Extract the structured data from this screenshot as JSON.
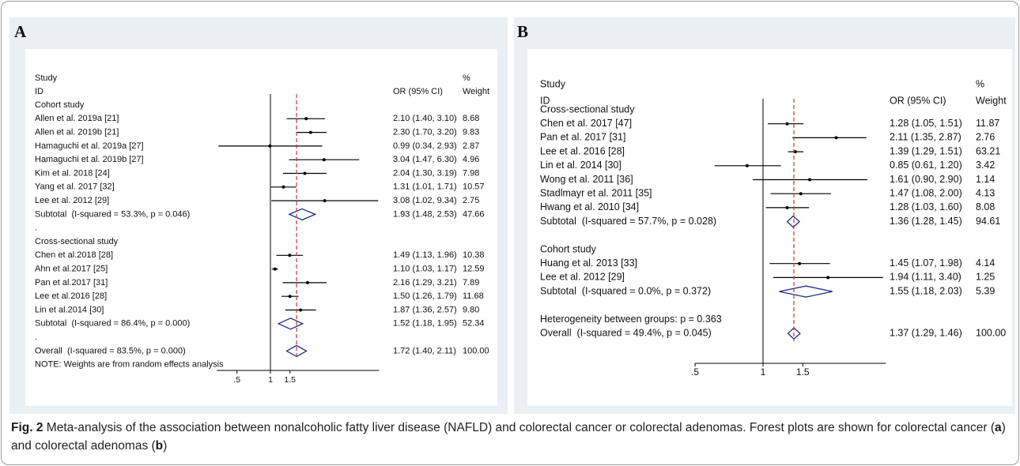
{
  "panels": [
    {
      "label": "A",
      "header": {
        "study": "Study",
        "id": "ID",
        "ci": "OR (95% CI)",
        "pct": "%",
        "weight": "Weight"
      },
      "log_scale": true,
      "xlim": [
        0.33,
        9.5
      ],
      "xticks": [
        {
          "value": 0.5,
          "label": ".5"
        },
        1,
        1.5
      ],
      "groups": [
        {
          "title": "Cohort study",
          "separator": ".",
          "studies": [
            {
              "label": "Allen et al. 2019a [21]",
              "or": 2.1,
              "lo": 1.4,
              "hi": 3.1,
              "ci_label": "2.10 (1.40, 3.10)",
              "weight": "8.68"
            },
            {
              "label": "Allen et al. 2019b [21]",
              "or": 2.3,
              "lo": 1.7,
              "hi": 3.2,
              "ci_label": "2.30 (1.70, 3.20)",
              "weight": "9.83"
            },
            {
              "label": "Hamaguchi et al. 2019a [27]",
              "or": 0.99,
              "lo": 0.34,
              "hi": 2.93,
              "ci_label": "0.99 (0.34, 2.93)",
              "weight": "2.87"
            },
            {
              "label": "Hamaguchi et al. 2019b [27]",
              "or": 3.04,
              "lo": 1.47,
              "hi": 6.3,
              "ci_label": "3.04 (1.47, 6.30)",
              "weight": "4.96"
            },
            {
              "label": "Kim et al. 2018 [24]",
              "or": 2.04,
              "lo": 1.3,
              "hi": 3.19,
              "ci_label": "2.04 (1.30, 3.19)",
              "weight": "7.98"
            },
            {
              "label": "Yang et al. 2017 [32]",
              "or": 1.31,
              "lo": 1.01,
              "hi": 1.71,
              "ci_label": "1.31 (1.01, 1.71)",
              "weight": "10.57"
            },
            {
              "label": "Lee et al. 2012 [29]",
              "or": 3.08,
              "lo": 1.02,
              "hi": 9.34,
              "ci_label": "3.08 (1.02, 9.34)",
              "weight": "2.75"
            }
          ],
          "subtotal": {
            "label": "Subtotal  (I-squared = 53.3%, p = 0.046)",
            "or": 1.93,
            "lo": 1.48,
            "hi": 2.53,
            "ci_label": "1.93 (1.48, 2.53)",
            "weight": "47.66"
          }
        },
        {
          "title": "Cross-sectional study",
          "separator": ".",
          "studies": [
            {
              "label": "Chen et al.2018 [28]",
              "or": 1.49,
              "lo": 1.13,
              "hi": 1.96,
              "ci_label": "1.49 (1.13, 1.96)",
              "weight": "10.38"
            },
            {
              "label": "Ahn et al.2017 [25]",
              "or": 1.1,
              "lo": 1.03,
              "hi": 1.17,
              "ci_label": "1.10 (1.03, 1.17)",
              "weight": "12.59"
            },
            {
              "label": "Pan et al.2017 [31]",
              "or": 2.16,
              "lo": 1.29,
              "hi": 3.21,
              "ci_label": "2.16 (1.29, 3.21)",
              "weight": "7.89"
            },
            {
              "label": "Lee et al.2016 [28]",
              "or": 1.5,
              "lo": 1.26,
              "hi": 1.79,
              "ci_label": "1.50 (1.26, 1.79)",
              "weight": "11.68"
            },
            {
              "label": "Lin et al.2014 [30]",
              "or": 1.87,
              "lo": 1.36,
              "hi": 2.57,
              "ci_label": "1.87 (1.36, 2.57)",
              "weight": "9.80"
            }
          ],
          "subtotal": {
            "label": "Subtotal  (I-squared = 86.4%, p = 0.000)",
            "or": 1.52,
            "lo": 1.18,
            "hi": 1.95,
            "ci_label": "1.52 (1.18, 1.95)",
            "weight": "52.34"
          }
        }
      ],
      "overall": {
        "label": "Overall  (I-squared = 83.5%, p = 0.000)",
        "or": 1.72,
        "lo": 1.4,
        "hi": 2.11,
        "ci_label": "1.72 (1.40, 2.11)",
        "weight": "100.00"
      },
      "note": "NOTE: Weights are from random effects analysis"
    },
    {
      "label": "B",
      "header": {
        "study": "Study",
        "id": "ID",
        "ci": "OR (95% CI)",
        "pct": "%",
        "weight": "Weight"
      },
      "log_scale": true,
      "xlim": [
        0.5,
        3.5
      ],
      "xticks": [
        {
          "value": 0.5,
          "label": ".5"
        },
        1,
        1.5
      ],
      "groups": [
        {
          "title": "Cross-sectional study",
          "studies": [
            {
              "label": "Chen et al. 2017 [47]",
              "or": 1.28,
              "lo": 1.05,
              "hi": 1.51,
              "ci_label": "1.28 (1.05, 1.51)",
              "weight": "11.87"
            },
            {
              "label": "Pan et al. 2017 [31]",
              "or": 2.11,
              "lo": 1.35,
              "hi": 2.87,
              "ci_label": "2.11 (1.35, 2.87)",
              "weight": "2.76"
            },
            {
              "label": "Lee et al. 2016 [28]",
              "or": 1.39,
              "lo": 1.29,
              "hi": 1.51,
              "ci_label": "1.39 (1.29, 1.51)",
              "weight": "63.21"
            },
            {
              "label": "Lin et al. 2014 [30]",
              "or": 0.85,
              "lo": 0.61,
              "hi": 1.2,
              "ci_label": "0.85 (0.61, 1.20)",
              "weight": "3.42"
            },
            {
              "label": "Wong et al. 2011 [36]",
              "or": 1.61,
              "lo": 0.9,
              "hi": 2.9,
              "ci_label": "1.61 (0.90, 2.90)",
              "weight": "1.14"
            },
            {
              "label": "Stadlmayr et al. 2011 [35]",
              "or": 1.47,
              "lo": 1.08,
              "hi": 2.0,
              "ci_label": "1.47 (1.08, 2.00)",
              "weight": "4.13"
            },
            {
              "label": "Hwang et al. 2010 [34]",
              "or": 1.28,
              "lo": 1.03,
              "hi": 1.6,
              "ci_label": "1.28 (1.03, 1.60)",
              "weight": "8.08"
            }
          ],
          "subtotal": {
            "label": "Subtotal  (I-squared = 57.7%, p = 0.028)",
            "or": 1.36,
            "lo": 1.28,
            "hi": 1.45,
            "ci_label": "1.36 (1.28, 1.45)",
            "weight": "94.61"
          }
        },
        {
          "title": "Cohort study",
          "studies": [
            {
              "label": "Huang et al. 2013 [33]",
              "or": 1.45,
              "lo": 1.07,
              "hi": 1.98,
              "ci_label": "1.45 (1.07, 1.98)",
              "weight": "4.14"
            },
            {
              "label": "Lee et al. 2012 [29]",
              "or": 1.94,
              "lo": 1.11,
              "hi": 3.4,
              "ci_label": "1.94 (1.11, 3.40)",
              "weight": "1.25"
            }
          ],
          "subtotal": {
            "label": "Subtotal  (I-squared = 0.0%, p = 0.372)",
            "or": 1.55,
            "lo": 1.18,
            "hi": 2.03,
            "ci_label": "1.55 (1.18, 2.03)",
            "weight": "5.39"
          }
        }
      ],
      "heterogeneity": "Heterogeneity between groups: p = 0.363",
      "overall": {
        "label": "Overall  (I-squared = 49.4%, p = 0.045)",
        "or": 1.37,
        "lo": 1.29,
        "hi": 1.46,
        "ci_label": "1.37 (1.29, 1.46)",
        "weight": "100.00"
      }
    }
  ],
  "caption": {
    "label": "Fig. 2",
    "text1": "Meta-analysis of the association between nonalcoholic fatty liver disease (NAFLD) and colorectal cancer or colorectal adenomas. Forest plots are shown for colorectal cancer (",
    "a": "a",
    "text2": ") and colorectal adenomas (",
    "b": "b",
    "text3": ")"
  }
}
